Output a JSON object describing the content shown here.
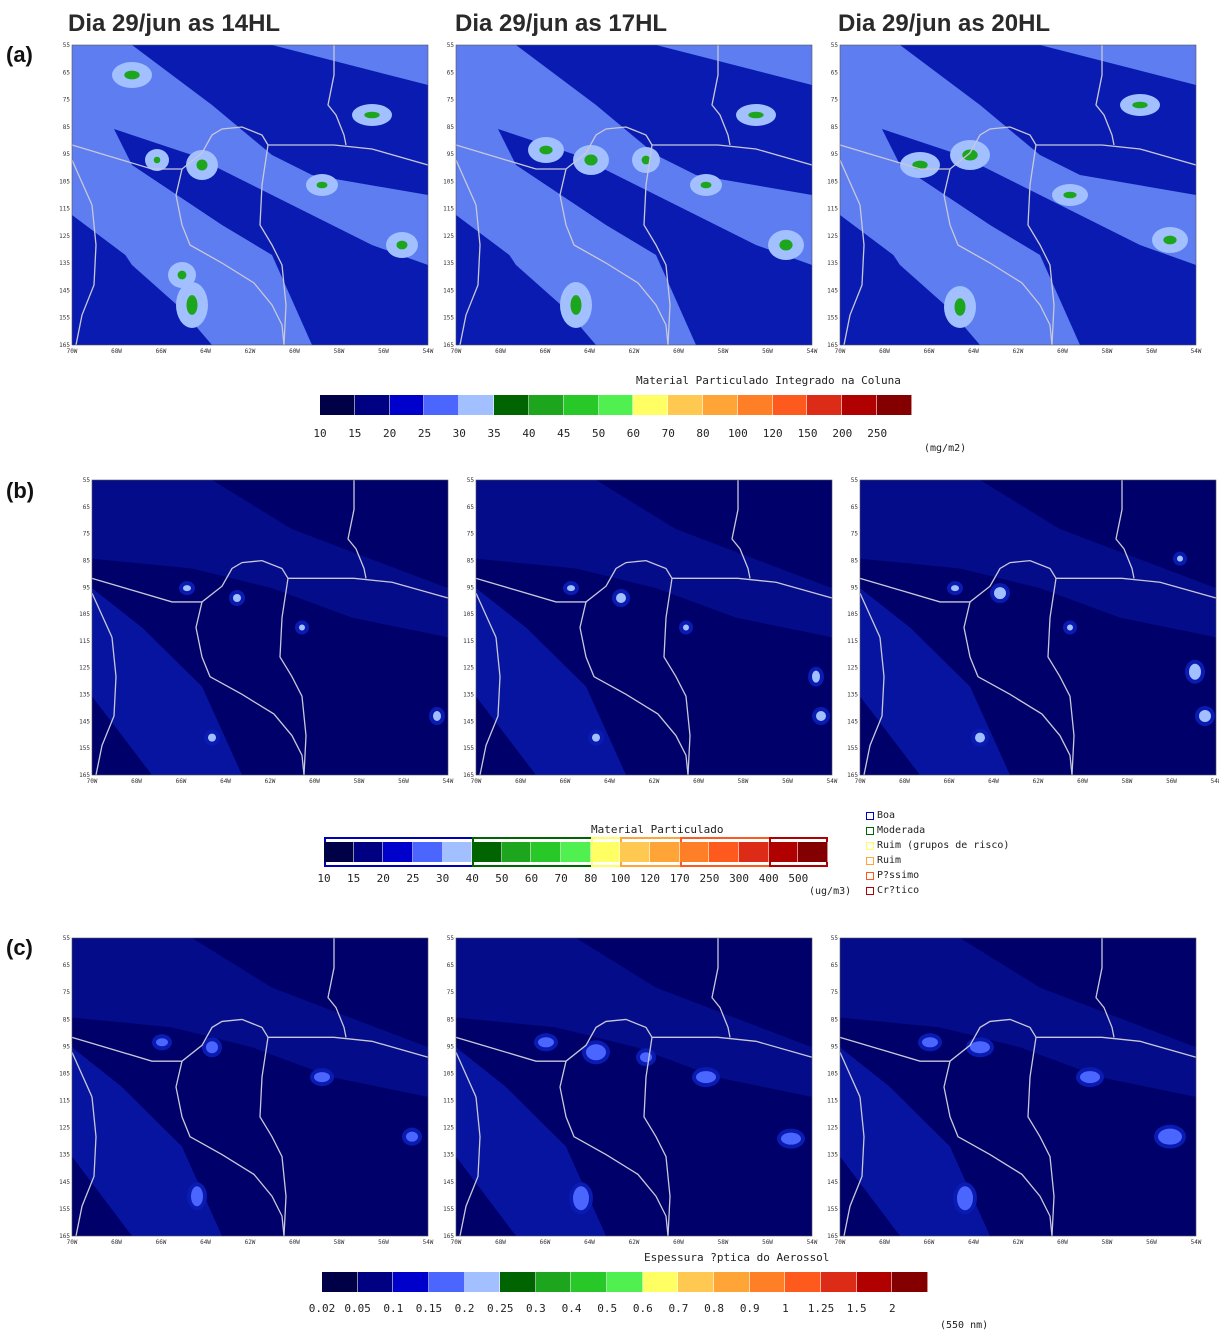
{
  "titles": [
    "Dia 29/jun as 14HL",
    "Dia 29/jun as 17HL",
    "Dia 29/jun as 20HL"
  ],
  "row_labels": {
    "a": "(a)",
    "b": "(b)",
    "c": "(c)"
  },
  "axes": {
    "lat_ticks": [
      "55",
      "65",
      "75",
      "85",
      "95",
      "105",
      "115",
      "125",
      "135",
      "145",
      "155",
      "165"
    ],
    "lon_ticks": [
      "70W",
      "68W",
      "66W",
      "64W",
      "62W",
      "60W",
      "58W",
      "56W",
      "54W"
    ]
  },
  "colorbar_a": {
    "title": "Material Particulado Integrado na Coluna",
    "unit": "(mg/m2)",
    "colors": [
      "#000046",
      "#000082",
      "#0000cd",
      "#4b66ff",
      "#a2bfff",
      "#006400",
      "#1ea51e",
      "#29c829",
      "#50f050",
      "#ffff63",
      "#ffc850",
      "#ffa437",
      "#ff7f27",
      "#ff5a1e",
      "#dc2b16",
      "#b10000",
      "#840000"
    ],
    "labels": [
      "10",
      "15",
      "20",
      "25",
      "30",
      "35",
      "40",
      "45",
      "50",
      "60",
      "70",
      "80",
      "100",
      "120",
      "150",
      "200",
      "250"
    ]
  },
  "colorbar_b": {
    "title": "Material Particulado",
    "unit": "(ug/m3)",
    "colors": [
      "#000046",
      "#000082",
      "#0000cd",
      "#4b66ff",
      "#a2bfff",
      "#006400",
      "#1ea51e",
      "#29c829",
      "#50f050",
      "#ffff63",
      "#ffc850",
      "#ffa437",
      "#ff7f27",
      "#ff5a1e",
      "#dc2b16",
      "#b10000",
      "#840000"
    ],
    "labels": [
      "10",
      "15",
      "20",
      "25",
      "30",
      "40",
      "50",
      "60",
      "70",
      "80",
      "100",
      "120",
      "170",
      "250",
      "300",
      "400",
      "500"
    ],
    "quality_colors": [
      "#0000b4",
      "#006400",
      "#ffff63",
      "#ffa437",
      "#ff5a1e",
      "#b10000"
    ],
    "quality": [
      "Boa",
      "Moderada",
      "Ruim (grupos de risco)",
      "Ruim",
      "P?ssimo",
      "Cr?tico"
    ]
  },
  "colorbar_c": {
    "title": "Espessura ?ptica do Aerossol",
    "unit": "(550 nm)",
    "colors": [
      "#000046",
      "#000082",
      "#0000cd",
      "#4b66ff",
      "#a2bfff",
      "#006400",
      "#1ea51e",
      "#29c829",
      "#50f050",
      "#ffff63",
      "#ffc850",
      "#ffa437",
      "#ff7f27",
      "#ff5a1e",
      "#dc2b16",
      "#b10000",
      "#840000"
    ],
    "labels": [
      "0.02",
      "0.05",
      "0.1",
      "0.15",
      "0.2",
      "0.25",
      "0.3",
      "0.4",
      "0.5",
      "0.6",
      "0.7",
      "0.8",
      "0.9",
      "1",
      "1.25",
      "1.5",
      "2"
    ]
  },
  "map_colors": {
    "a_base": "#5d7df0",
    "a_dark": "#0a1bb2",
    "a_light": "#a2bfff",
    "a_green": "#1ea51e",
    "b_base": "#00006b",
    "b_light": "#0a1bb2",
    "b_spot": "#a2bfff",
    "c_base": "#00006b",
    "c_light": "#0a1bb2",
    "c_spot": "#4b66ff",
    "border": "#c8c8d8"
  }
}
